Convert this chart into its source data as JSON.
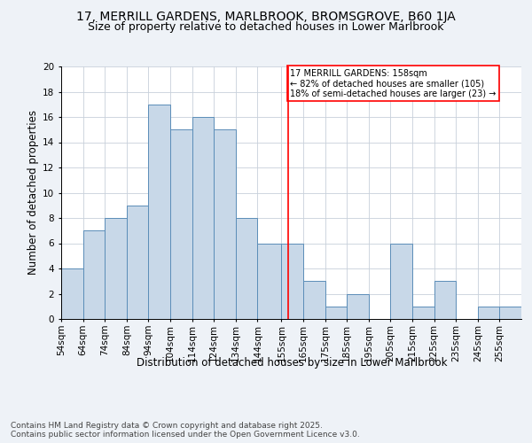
{
  "title_line1": "17, MERRILL GARDENS, MARLBROOK, BROMSGROVE, B60 1JA",
  "title_line2": "Size of property relative to detached houses in Lower Marlbrook",
  "xlabel": "Distribution of detached houses by size in Lower Marlbrook",
  "ylabel": "Number of detached properties",
  "footer": "Contains HM Land Registry data © Crown copyright and database right 2025.\nContains public sector information licensed under the Open Government Licence v3.0.",
  "bin_labels": [
    "54sqm",
    "64sqm",
    "74sqm",
    "84sqm",
    "94sqm",
    "104sqm",
    "114sqm",
    "124sqm",
    "134sqm",
    "144sqm",
    "155sqm",
    "165sqm",
    "175sqm",
    "185sqm",
    "195sqm",
    "205sqm",
    "215sqm",
    "225sqm",
    "235sqm",
    "245sqm",
    "255sqm"
  ],
  "bar_heights": [
    4,
    7,
    8,
    9,
    17,
    15,
    16,
    15,
    8,
    6,
    6,
    3,
    1,
    2,
    0,
    6,
    1,
    3,
    0,
    1,
    1
  ],
  "bar_color": "#c8d8e8",
  "bar_edge_color": "#5b8db8",
  "bin_edges": [
    54,
    64,
    74,
    84,
    94,
    104,
    114,
    124,
    134,
    144,
    155,
    165,
    175,
    185,
    195,
    205,
    215,
    225,
    235,
    245,
    255,
    265
  ],
  "vline_x": 158,
  "annotation_text": "17 MERRILL GARDENS: 158sqm\n← 82% of detached houses are smaller (105)\n18% of semi-detached houses are larger (23) →",
  "annotation_box_color": "white",
  "annotation_box_edge_color": "red",
  "vline_color": "red",
  "ylim": [
    0,
    20
  ],
  "yticks": [
    0,
    2,
    4,
    6,
    8,
    10,
    12,
    14,
    16,
    18,
    20
  ],
  "background_color": "#eef2f7",
  "plot_background": "white",
  "grid_color": "#c8d0da",
  "title_fontsize": 10,
  "subtitle_fontsize": 9,
  "axis_label_fontsize": 8.5,
  "tick_fontsize": 7.5,
  "annotation_fontsize": 7,
  "footer_fontsize": 6.5
}
